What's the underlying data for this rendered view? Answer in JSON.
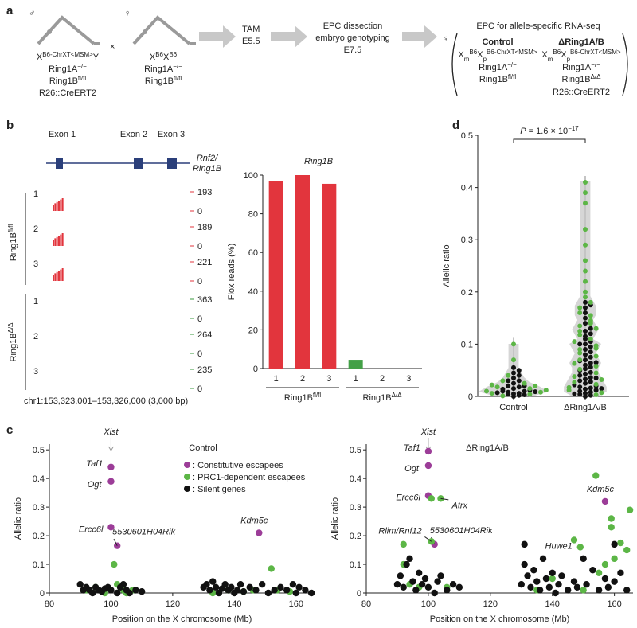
{
  "figure": {
    "panel_labels": [
      "a",
      "b",
      "c",
      "d"
    ]
  },
  "scheme": {
    "male_symbol": "♂",
    "female_symbol": "♀",
    "cross": "×",
    "male": {
      "chrx": [
        "X",
        "B6-ChrXT<MSM>",
        "Y"
      ],
      "ring1a": [
        "Ring1A",
        "−/−"
      ],
      "ring1b": [
        "Ring1B",
        "fl/fl"
      ],
      "cre": "R26::CreERT2"
    },
    "female": {
      "chrx": [
        "X",
        "B6",
        "X",
        "B6"
      ],
      "ring1a": [
        "Ring1A",
        "−/−"
      ],
      "ring1b": [
        "Ring1B",
        "fl/fl"
      ]
    },
    "step1": [
      "TAM",
      "E5.5"
    ],
    "step2": [
      "EPC dissection",
      "embryo genotyping",
      "E7.5"
    ],
    "result": {
      "female_symbol": "♀",
      "title": "EPC for allele-specific RNA-seq",
      "control": {
        "name": "Control",
        "chrx": [
          "X",
          "m",
          "B6",
          "X",
          "p",
          "B6-ChrXT<MSM>"
        ],
        "ring1a": [
          "Ring1A",
          "−/−"
        ],
        "ring1b": [
          "Ring1B",
          "fl/fl"
        ]
      },
      "mutant": {
        "name": "ΔRing1A/B",
        "chrx": [
          "X",
          "m",
          "B6",
          "X",
          "p",
          "B6-ChrXT<MSM>"
        ],
        "ring1a": [
          "Ring1A",
          "−/−"
        ],
        "ring1b": [
          "Ring1B",
          "Δ/Δ"
        ],
        "cre": "R26::CreERT2"
      }
    }
  },
  "tracks": {
    "exons": [
      "Exon 1",
      "Exon 2",
      "Exon 3"
    ],
    "gene": [
      "Rnf2/",
      "Ring1B"
    ],
    "baseline": 0,
    "groups": [
      {
        "label": [
          "Ring1B",
          "fl/fl"
        ],
        "replicates": [
          "1",
          "2",
          "3"
        ],
        "maxima": [
          193,
          189,
          221
        ]
      },
      {
        "label": [
          "Ring1B",
          "Δ/Δ"
        ],
        "replicates": [
          "1",
          "2",
          "3"
        ],
        "maxima": [
          363,
          264,
          235
        ]
      }
    ],
    "coordinates": "chr1:153,323,001–153,326,000 (3,000 bp)"
  },
  "chart_data": [
    {
      "type": "bar",
      "title": "Ring1B",
      "y_label": "Flox reads (%)",
      "categories": [
        "1",
        "2",
        "3",
        "1",
        "2",
        "3"
      ],
      "values": [
        97,
        100,
        95.5,
        4.5,
        0,
        0
      ],
      "colors": [
        "#e2353d",
        "#e2353d",
        "#e2353d",
        "#43a047",
        "#43a047",
        "#43a047"
      ],
      "groups": [
        [
          "Ring1B",
          "fl/fl"
        ],
        [
          "Ring1B",
          "Δ/Δ"
        ]
      ],
      "ylim": [
        0,
        100
      ],
      "yticks": [
        0,
        20,
        40,
        60,
        80,
        100
      ]
    },
    {
      "type": "swarm",
      "y_label": "Allelic ratio",
      "categories": [
        "Control",
        "ΔRing1A/B"
      ],
      "violin_color": "#c4c4c4",
      "annotation": [
        "P",
        " = 1.6 × 10",
        "−17"
      ],
      "series": [
        {
          "color": "#111111",
          "values": [
            [
              0,
              0.002,
              0.004,
              0.005,
              0.006,
              0.008,
              0.01,
              0.01,
              0.012,
              0.015,
              0.018,
              0.02,
              0.02,
              0.025,
              0.03,
              0.03,
              0.035,
              0.04,
              0.045,
              0.05,
              0.055,
              0.003,
              0.007,
              0.009,
              0.014
            ],
            [
              0,
              0.002,
              0.004,
              0.006,
              0.008,
              0.01,
              0.012,
              0.014,
              0.016,
              0.018,
              0.02,
              0.022,
              0.025,
              0.028,
              0.03,
              0.033,
              0.036,
              0.04,
              0.043,
              0.046,
              0.05,
              0.053,
              0.056,
              0.06,
              0.064,
              0.068,
              0.07,
              0.075,
              0.08,
              0.085,
              0.09,
              0.095,
              0.1,
              0.105,
              0.11,
              0.115,
              0.12,
              0.125,
              0.13,
              0.14,
              0.15,
              0.16,
              0.17,
              0.175,
              0.18,
              0.005,
              0.015,
              0.035,
              0.065,
              0.1
            ]
          ]
        },
        {
          "color": "#5cb646",
          "values": [
            [
              0.001,
              0.004,
              0.006,
              0.008,
              0.01,
              0.012,
              0.015,
              0.018,
              0.02,
              0.022,
              0.025,
              0.03,
              0.04,
              0.07,
              0.1
            ],
            [
              0.003,
              0.007,
              0.012,
              0.017,
              0.023,
              0.027,
              0.032,
              0.038,
              0.045,
              0.052,
              0.058,
              0.063,
              0.07,
              0.077,
              0.083,
              0.09,
              0.097,
              0.105,
              0.11,
              0.118,
              0.125,
              0.13,
              0.14,
              0.145,
              0.155,
              0.16,
              0.17,
              0.18,
              0.19,
              0.2,
              0.22,
              0.24,
              0.26,
              0.29,
              0.32,
              0.37,
              0.39,
              0.41,
              0.135,
              0.092
            ]
          ]
        }
      ],
      "ylim": [
        0,
        0.5
      ],
      "yticks": [
        0,
        0.1,
        0.2,
        0.3,
        0.4,
        0.5
      ]
    },
    {
      "type": "scatter",
      "title": "Control",
      "x_label": "Position on the X chromosome (Mb)",
      "y_label": "Allelic ratio",
      "xlim": [
        80,
        166
      ],
      "ylim": [
        0,
        0.52
      ],
      "xticks": [
        80,
        100,
        120,
        140,
        160
      ],
      "yticks": [
        0,
        0.1,
        0.2,
        0.3,
        0.4,
        0.5
      ],
      "marker": {
        "label": "Xist",
        "x": 100
      },
      "legend": "top-center",
      "series": [
        {
          "name": ": Constitutive escapees",
          "color": "#9c3d98",
          "x": [
            100,
            100,
            100,
            102,
            148
          ],
          "y": [
            0.44,
            0.39,
            0.23,
            0.165,
            0.21
          ],
          "point_labels": [
            "Taf1",
            "Ogt",
            "Ercc6l",
            "5530601H04Rik",
            "Kdm5c"
          ]
        },
        {
          "name": ": PRC1-dependent escapees",
          "color": "#5cb646",
          "x": [
            92,
            95,
            98,
            101,
            102,
            103,
            104,
            105,
            107,
            133,
            138,
            143,
            146,
            152,
            154,
            158
          ],
          "y": [
            0.01,
            0.02,
            0,
            0.1,
            0.03,
            0.02,
            0.01,
            0,
            0.01,
            0,
            0.01,
            0.005,
            0.01,
            0.085,
            0.01,
            0.005
          ]
        },
        {
          "name": ": Silent genes",
          "color": "#111111",
          "x": [
            90,
            91,
            92,
            93,
            94,
            95,
            96,
            97,
            98,
            99,
            100,
            102,
            103,
            104,
            105,
            106,
            108,
            110,
            130,
            131,
            132,
            133,
            134,
            135,
            136,
            137,
            138,
            139,
            140,
            141,
            142,
            143,
            145,
            147,
            149,
            151,
            153,
            155,
            157,
            159,
            160,
            161,
            163,
            165
          ],
          "y": [
            0.03,
            0.01,
            0.02,
            0.01,
            0,
            0.02,
            0.01,
            0.005,
            0.015,
            0.02,
            0.01,
            0,
            0.02,
            0.03,
            0.01,
            0,
            0.01,
            0.005,
            0.02,
            0.03,
            0.01,
            0.04,
            0.02,
            0,
            0.015,
            0.03,
            0.01,
            0.02,
            0,
            0.01,
            0.03,
            0.005,
            0.02,
            0.01,
            0.03,
            0,
            0.01,
            0.02,
            0.01,
            0.03,
            0,
            0.02,
            0.01,
            0
          ]
        }
      ]
    },
    {
      "type": "scatter",
      "title": "ΔRing1A/B",
      "x_label": "Position on the X chromosome (Mb)",
      "y_label": "Allelic ratio",
      "xlim": [
        80,
        166
      ],
      "ylim": [
        0,
        0.52
      ],
      "xticks": [
        80,
        100,
        120,
        140,
        160
      ],
      "yticks": [
        0,
        0.1,
        0.2,
        0.3,
        0.4,
        0.5
      ],
      "marker": {
        "label": "Xist",
        "x": 100
      },
      "legend": "none",
      "series": [
        {
          "name": ": Constitutive escapees",
          "color": "#9c3d98",
          "x": [
            100,
            100,
            100,
            102,
            157
          ],
          "y": [
            0.495,
            0.445,
            0.34,
            0.17,
            0.32
          ],
          "point_labels": [
            "Taf1",
            "Ogt",
            "Ercc6l",
            "5530601H04Rik",
            "Kdm5c"
          ]
        },
        {
          "name": ": PRC1-dependent escapees",
          "color": "#5cb646",
          "x": [
            92,
            92,
            94,
            97,
            101,
            101,
            104,
            106,
            135,
            140,
            147,
            149,
            150,
            154,
            155,
            157,
            159,
            159,
            160,
            162,
            164,
            165
          ],
          "y": [
            0.17,
            0.1,
            0.03,
            0.02,
            0.18,
            0.33,
            0.33,
            0.02,
            0.01,
            0.05,
            0.185,
            0.16,
            0.01,
            0.41,
            0.07,
            0.1,
            0.26,
            0.23,
            0.12,
            0.175,
            0.15,
            0.29
          ],
          "point_labels": [
            null,
            null,
            null,
            null,
            "Rlim/Rnf12",
            null,
            "Atrx",
            null,
            null,
            null,
            null,
            "Huwe1",
            null,
            null,
            null,
            null,
            null,
            null,
            null,
            null,
            null,
            null
          ]
        },
        {
          "name": ": Silent genes",
          "color": "#111111",
          "x": [
            90,
            91,
            92,
            93,
            94,
            95,
            96,
            97,
            98,
            99,
            100,
            102,
            103,
            104,
            106,
            108,
            110,
            130,
            131,
            131,
            132,
            133,
            134,
            135,
            136,
            137,
            138,
            139,
            140,
            141,
            142,
            143,
            145,
            147,
            148,
            150,
            151,
            153,
            155,
            157,
            158,
            160,
            160,
            162,
            164
          ],
          "y": [
            0.03,
            0.06,
            0.02,
            0.1,
            0.12,
            0.04,
            0.01,
            0.07,
            0.03,
            0.05,
            0.02,
            0,
            0.04,
            0.06,
            0.01,
            0.03,
            0.02,
            0.03,
            0.17,
            0.1,
            0.06,
            0.02,
            0.08,
            0.04,
            0.01,
            0.12,
            0.05,
            0.02,
            0.07,
            0,
            0.03,
            0.06,
            0.01,
            0.04,
            0.02,
            0.12,
            0.03,
            0.08,
            0.01,
            0.05,
            0.02,
            0.17,
            0.04,
            0.07,
            0.01
          ]
        }
      ]
    }
  ]
}
